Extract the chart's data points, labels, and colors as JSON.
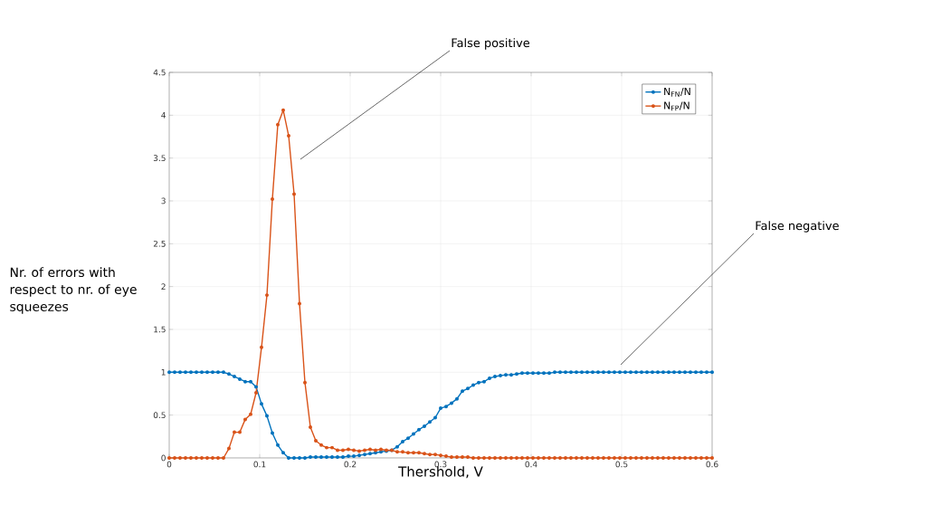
{
  "chart_data": {
    "type": "line",
    "xlabel": "Thershold, V",
    "ylabel": "Nr. of errors with respect to nr. of eye squeezes",
    "x": [
      0,
      0.006,
      0.012,
      0.018,
      0.024,
      0.03,
      0.036,
      0.042,
      0.048,
      0.054,
      0.06,
      0.066,
      0.072,
      0.078,
      0.084,
      0.09,
      0.096,
      0.102,
      0.108,
      0.114,
      0.12,
      0.126,
      0.132,
      0.138,
      0.144,
      0.15,
      0.156,
      0.162,
      0.168,
      0.174,
      0.18,
      0.186,
      0.192,
      0.198,
      0.204,
      0.21,
      0.216,
      0.222,
      0.228,
      0.234,
      0.24,
      0.246,
      0.252,
      0.258,
      0.264,
      0.27,
      0.276,
      0.282,
      0.288,
      0.294,
      0.3,
      0.306,
      0.312,
      0.318,
      0.324,
      0.33,
      0.336,
      0.342,
      0.348,
      0.354,
      0.36,
      0.366,
      0.372,
      0.378,
      0.384,
      0.39,
      0.396,
      0.402,
      0.408,
      0.414,
      0.42,
      0.426,
      0.432,
      0.438,
      0.444,
      0.45,
      0.456,
      0.462,
      0.468,
      0.474,
      0.48,
      0.486,
      0.492,
      0.498,
      0.504,
      0.51,
      0.516,
      0.522,
      0.528,
      0.534,
      0.54,
      0.546,
      0.552,
      0.558,
      0.564,
      0.57,
      0.576,
      0.582,
      0.588,
      0.594,
      0.6
    ],
    "series": [
      {
        "name": "N$_{FN}$/N",
        "color": "#0072bd",
        "values": [
          1,
          1,
          1,
          1,
          1,
          1,
          1,
          1,
          1,
          1,
          1,
          0.98,
          0.95,
          0.92,
          0.89,
          0.89,
          0.83,
          0.63,
          0.49,
          0.29,
          0.15,
          0.06,
          0,
          0,
          0,
          0,
          0.01,
          0.01,
          0.01,
          0.01,
          0.01,
          0.01,
          0.01,
          0.02,
          0.02,
          0.03,
          0.04,
          0.05,
          0.06,
          0.07,
          0.08,
          0.09,
          0.13,
          0.19,
          0.23,
          0.28,
          0.33,
          0.37,
          0.42,
          0.47,
          0.58,
          0.6,
          0.64,
          0.69,
          0.78,
          0.81,
          0.85,
          0.88,
          0.89,
          0.93,
          0.95,
          0.96,
          0.97,
          0.97,
          0.98,
          0.99,
          0.99,
          0.99,
          0.99,
          0.99,
          0.99,
          1,
          1,
          1,
          1,
          1,
          1,
          1,
          1,
          1,
          1,
          1,
          1,
          1,
          1,
          1,
          1,
          1,
          1,
          1,
          1,
          1,
          1,
          1,
          1,
          1,
          1,
          1,
          1,
          1,
          1
        ]
      },
      {
        "name": "N$_{FP}$/N",
        "color": "#d95319",
        "values": [
          0,
          0,
          0,
          0,
          0,
          0,
          0,
          0,
          0,
          0,
          0,
          0.11,
          0.3,
          0.3,
          0.45,
          0.51,
          0.76,
          1.29,
          1.9,
          3.02,
          3.89,
          4.06,
          3.76,
          3.08,
          1.8,
          0.88,
          0.36,
          0.2,
          0.15,
          0.12,
          0.12,
          0.09,
          0.09,
          0.1,
          0.09,
          0.08,
          0.09,
          0.1,
          0.09,
          0.1,
          0.09,
          0.09,
          0.07,
          0.07,
          0.06,
          0.06,
          0.06,
          0.05,
          0.04,
          0.04,
          0.03,
          0.02,
          0.01,
          0.01,
          0.01,
          0.01,
          0,
          0,
          0,
          0,
          0,
          0,
          0,
          0,
          0,
          0,
          0,
          0,
          0,
          0,
          0,
          0,
          0,
          0,
          0,
          0,
          0,
          0,
          0,
          0,
          0,
          0,
          0,
          0,
          0,
          0,
          0,
          0,
          0,
          0,
          0,
          0,
          0,
          0,
          0,
          0,
          0,
          0,
          0,
          0,
          0
        ]
      }
    ],
    "xlim": [
      0,
      0.6
    ],
    "ylim": [
      0,
      4.5
    ],
    "xticks": [
      0,
      0.1,
      0.2,
      0.3,
      0.4,
      0.5,
      0.6
    ],
    "yticks": [
      0,
      0.5,
      1,
      1.5,
      2,
      2.5,
      3,
      3.5,
      4,
      4.5
    ],
    "grid": true,
    "legend": "top right",
    "marker": "circle",
    "line_style": "solid",
    "annotations": [
      "False positive",
      "False negative"
    ]
  }
}
